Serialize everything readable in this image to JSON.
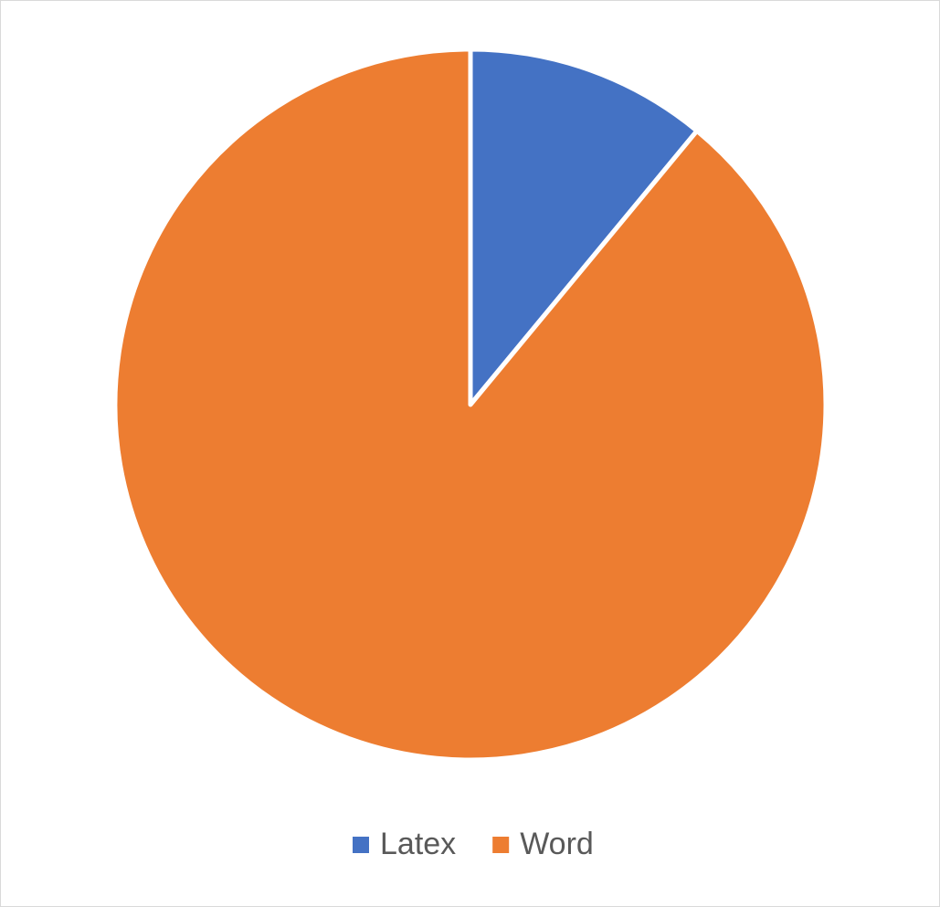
{
  "chart_data": {
    "type": "pie",
    "categories": [
      "Latex",
      "Word"
    ],
    "values": [
      11,
      89
    ],
    "colors": [
      "#4472c4",
      "#ed7d31"
    ],
    "legend": "bottom"
  }
}
